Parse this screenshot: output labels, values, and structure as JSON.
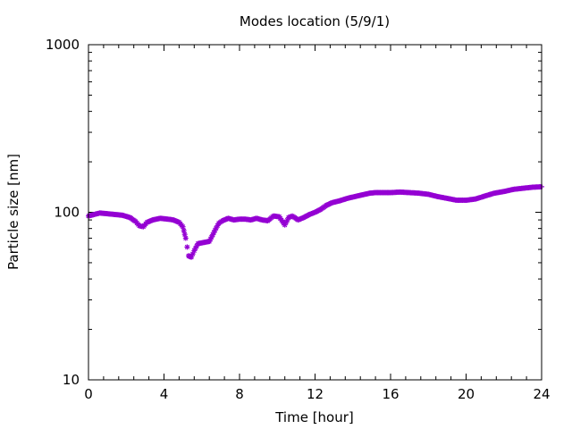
{
  "chart_data": {
    "type": "scatter",
    "title": "Modes location (5/9/1)",
    "xlabel": "Time [hour]",
    "ylabel": "Particle size [nm]",
    "xlim": [
      0,
      24
    ],
    "ylim": [
      10,
      1000
    ],
    "yscale": "log",
    "grid": false,
    "legend": "none",
    "x_ticks": [
      0,
      4,
      8,
      12,
      16,
      20,
      24
    ],
    "x_tick_labels": [
      "0",
      "4",
      "8",
      "12",
      "16",
      "20",
      "24"
    ],
    "y_ticks": [
      10,
      100,
      1000
    ],
    "y_tick_labels": [
      "10",
      "100",
      "1000"
    ],
    "marker_color": "#9400d3",
    "marker_shape": "asterisk",
    "series": [
      {
        "x": [
          0,
          0.3,
          0.6,
          1.0,
          1.4,
          1.8,
          2.2,
          2.5,
          2.7,
          2.9,
          3.1,
          3.4,
          3.8,
          4.2,
          4.5,
          4.8,
          5.0,
          5.15,
          5.3,
          5.45,
          5.6,
          5.8,
          6.1,
          6.4,
          6.7,
          6.9,
          7.1,
          7.4,
          7.7,
          8.0,
          8.3,
          8.6,
          8.9,
          9.2,
          9.5,
          9.8,
          10.1,
          10.4,
          10.6,
          10.8,
          11.1,
          11.4,
          11.7,
          12.0,
          12.3,
          12.6,
          12.9,
          13.3,
          13.7,
          14.1,
          14.5,
          14.9,
          15.2,
          15.6,
          16.0,
          16.5,
          17.0,
          17.5,
          18.0,
          18.5,
          19.0,
          19.5,
          20.0,
          20.5,
          21.0,
          21.5,
          22.0,
          22.5,
          23.0,
          23.5,
          24.0
        ],
        "y": [
          95,
          97,
          99,
          98,
          97,
          96,
          93,
          88,
          83,
          82,
          87,
          90,
          92,
          91,
          90,
          87,
          82,
          70,
          55,
          54,
          59,
          65,
          66,
          67,
          78,
          86,
          89,
          92,
          90,
          91,
          91,
          90,
          92,
          90,
          89,
          95,
          94,
          84,
          93,
          95,
          90,
          93,
          97,
          100,
          104,
          110,
          114,
          117,
          121,
          124,
          127,
          130,
          131,
          131,
          131,
          132,
          131,
          130,
          128,
          124,
          121,
          118,
          118,
          120,
          125,
          130,
          133,
          137,
          139,
          141,
          142
        ]
      }
    ]
  }
}
